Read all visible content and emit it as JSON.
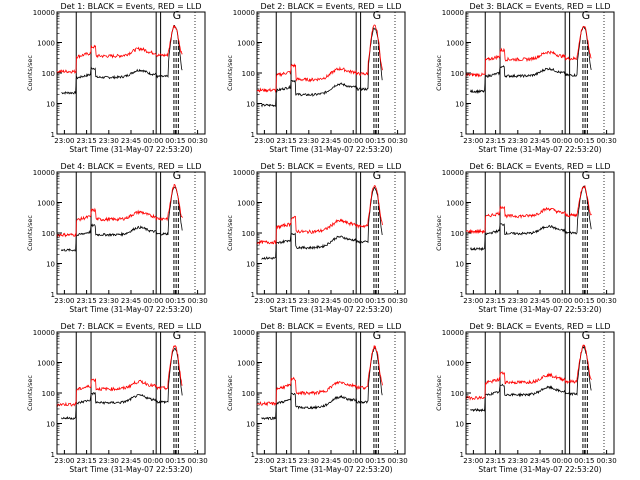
{
  "chart_data": {
    "type": "line",
    "xlabel": "Start Time (31-May-07 22:53:20)",
    "ylabel": "Counts/sec",
    "x_ticks": [
      "23:00",
      "23:15",
      "23:30",
      "23:45",
      "00:00",
      "00:15",
      "00:30"
    ],
    "y_ticks": [
      "1",
      "10",
      "100",
      "1000",
      "10000"
    ],
    "y_scale": "log",
    "ylim": [
      1,
      10000
    ],
    "series_colors": {
      "events": "#000000",
      "lld": "#ff0000"
    },
    "panels": [
      {
        "title": "Det 1: BLACK = Events, RED = LLD",
        "tag": "G",
        "events_level": 90,
        "lld_level": 450,
        "events_peak": 3500,
        "lld_peak": 3600
      },
      {
        "title": "Det 2: BLACK = Events, RED = LLD",
        "tag": "G",
        "events_level": 35,
        "lld_level": 110,
        "events_peak": 3000,
        "lld_peak": 3500
      },
      {
        "title": "Det 3: BLACK = Events, RED = LLD",
        "tag": "G",
        "events_level": 100,
        "lld_level": 350,
        "events_peak": 3300,
        "lld_peak": 3500
      },
      {
        "title": "Det 4: BLACK = Events, RED = LLD",
        "tag": "G",
        "events_level": 110,
        "lld_level": 350,
        "events_peak": 3300,
        "lld_peak": 3600
      },
      {
        "title": "Det 5: BLACK = Events, RED = LLD",
        "tag": "G",
        "events_level": 60,
        "lld_level": 200,
        "events_peak": 3000,
        "lld_peak": 3500
      },
      {
        "title": "Det 6: BLACK = Events, RED = LLD",
        "tag": "G",
        "events_level": 120,
        "lld_level": 450,
        "events_peak": 3300,
        "lld_peak": 3600
      },
      {
        "title": "Det 7: BLACK = Events, RED = LLD",
        "tag": "G",
        "events_level": 60,
        "lld_level": 170,
        "events_peak": 2900,
        "lld_peak": 3500
      },
      {
        "title": "Det 8: BLACK = Events, RED = LLD",
        "tag": "G",
        "events_level": 60,
        "lld_level": 180,
        "events_peak": 2900,
        "lld_peak": 3400
      },
      {
        "title": "Det 9: BLACK = Events, RED = LLD",
        "tag": "G",
        "events_level": 110,
        "lld_level": 280,
        "events_peak": 3200,
        "lld_peak": 3500
      }
    ]
  }
}
